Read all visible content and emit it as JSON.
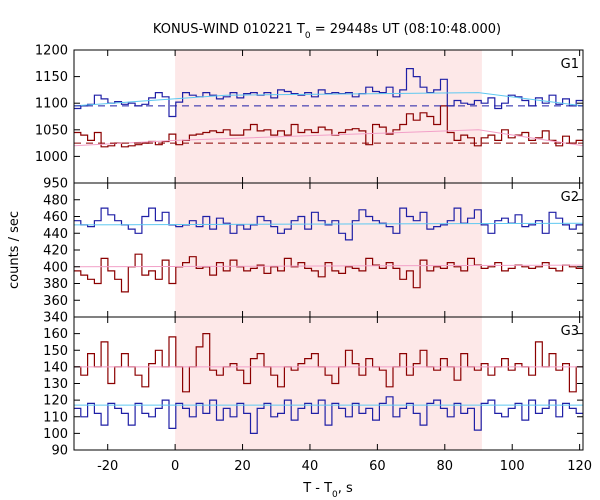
{
  "chart_data": {
    "type": "line",
    "title": {
      "pre": "KONUS-WIND 010221 T",
      "sub": "0",
      "post": " = 29448s UT (08:10:48.000)"
    },
    "xlabel": {
      "pre": "T - T",
      "sub": "0",
      "post": ", s"
    },
    "ylabel": "counts / sec",
    "xlim": [
      -30,
      121
    ],
    "xticks": [
      -20,
      0,
      20,
      40,
      60,
      80,
      100,
      120
    ],
    "shaded_interval": [
      0,
      91
    ],
    "colors": {
      "blue": "#1f1fa6",
      "red": "#8b0000",
      "cyan": "#5ec8f0",
      "pink": "#f2a0c8",
      "shade": "#fde8e8"
    },
    "panels": [
      {
        "name": "G1",
        "ylim": [
          950,
          1200
        ],
        "yticks": [
          950,
          1000,
          1050,
          1100,
          1150,
          1200
        ],
        "series": [
          {
            "color": "blue",
            "values": [
              1090,
              1095,
              1098,
              1115,
              1108,
              1100,
              1103,
              1098,
              1100,
              1095,
              1098,
              1110,
              1120,
              1112,
              1075,
              1102,
              1120,
              1115,
              1112,
              1120,
              1115,
              1108,
              1112,
              1120,
              1110,
              1118,
              1120,
              1115,
              1120,
              1110,
              1125,
              1122,
              1118,
              1115,
              1120,
              1112,
              1125,
              1118,
              1120,
              1118,
              1120,
              1112,
              1118,
              1130,
              1122,
              1120,
              1130,
              1112,
              1125,
              1165,
              1150,
              1130,
              1120,
              1125,
              1145,
              1095,
              1105,
              1100,
              1098,
              1105,
              1100,
              1110,
              1090,
              1100,
              1115,
              1112,
              1105,
              1095,
              1110,
              1100,
              1115,
              1098,
              1108,
              1095,
              1105
            ]
          },
          {
            "color": "red",
            "values": [
              1045,
              1040,
              1030,
              1045,
              1018,
              1020,
              1025,
              1018,
              1020,
              1022,
              1025,
              1028,
              1022,
              1028,
              1042,
              1022,
              1030,
              1040,
              1042,
              1045,
              1048,
              1045,
              1050,
              1040,
              1040,
              1050,
              1060,
              1048,
              1050,
              1040,
              1048,
              1040,
              1060,
              1045,
              1050,
              1045,
              1055,
              1050,
              1040,
              1045,
              1050,
              1052,
              1048,
              1022,
              1060,
              1055,
              1042,
              1050,
              1060,
              1080,
              1068,
              1082,
              1075,
              1060,
              1095,
              1045,
              1030,
              1040,
              1035,
              1020,
              1035,
              1040,
              1030,
              1050,
              1035,
              1040,
              1045,
              1030,
              1035,
              1048,
              1030,
              1020,
              1038,
              1025,
              1030
            ]
          },
          {
            "color": "cyan",
            "segments": [
              [
                -30,
                1095
              ],
              [
                15,
                1115
              ],
              [
                90,
                1120
              ],
              [
                121,
                1095
              ]
            ]
          },
          {
            "color": "pink",
            "segments": [
              [
                -30,
                1020
              ],
              [
                0,
                1030
              ],
              [
                90,
                1050
              ],
              [
                121,
                1020
              ]
            ]
          },
          {
            "color": "blue",
            "dashed": true,
            "segments": [
              [
                -30,
                1095
              ],
              [
                121,
                1095
              ]
            ]
          },
          {
            "color": "red",
            "dashed": true,
            "segments": [
              [
                -30,
                1025
              ],
              [
                121,
                1025
              ]
            ]
          }
        ]
      },
      {
        "name": "G2",
        "ylim": [
          340,
          500
        ],
        "yticks": [
          340,
          360,
          380,
          400,
          420,
          440,
          460,
          480
        ],
        "series": [
          {
            "color": "blue",
            "values": [
              455,
              450,
              448,
              455,
              470,
              462,
              455,
              450,
              445,
              440,
              460,
              470,
              455,
              465,
              450,
              448,
              450,
              455,
              448,
              460,
              445,
              458,
              452,
              440,
              450,
              445,
              450,
              460,
              455,
              448,
              440,
              445,
              455,
              460,
              445,
              465,
              455,
              450,
              455,
              440,
              432,
              455,
              468,
              460,
              455,
              452,
              448,
              440,
              470,
              460,
              455,
              465,
              445,
              448,
              450,
              455,
              470,
              452,
              458,
              468,
              450,
              440,
              455,
              458,
              452,
              462,
              448,
              450,
              455,
              440,
              465,
              458,
              450,
              445,
              450
            ]
          },
          {
            "color": "red",
            "values": [
              395,
              390,
              385,
              380,
              410,
              395,
              385,
              370,
              400,
              415,
              390,
              395,
              385,
              408,
              380,
              400,
              405,
              412,
              398,
              400,
              390,
              405,
              395,
              408,
              400,
              395,
              398,
              402,
              392,
              400,
              395,
              410,
              400,
              405,
              398,
              395,
              388,
              405,
              395,
              392,
              400,
              398,
              395,
              410,
              402,
              398,
              405,
              398,
              385,
              395,
              375,
              408,
              395,
              400,
              398,
              405,
              400,
              395,
              410,
              402,
              398,
              400,
              405,
              395,
              398,
              402,
              400,
              398,
              400,
              405,
              398,
              395,
              402,
              400,
              398
            ]
          },
          {
            "color": "cyan",
            "segments": [
              [
                -30,
                450
              ],
              [
                121,
                452
              ]
            ]
          },
          {
            "color": "pink",
            "segments": [
              [
                -30,
                400
              ],
              [
                121,
                402
              ]
            ]
          }
        ]
      },
      {
        "name": "G3",
        "ylim": [
          90,
          170
        ],
        "yticks": [
          90,
          100,
          110,
          120,
          130,
          140,
          150,
          160
        ],
        "series": [
          {
            "color": "blue",
            "values": [
              115,
              110,
              118,
              112,
              105,
              118,
              115,
              112,
              105,
              118,
              112,
              110,
              115,
              120,
              103,
              118,
              115,
              110,
              118,
              112,
              120,
              108,
              115,
              110,
              118,
              112,
              100,
              115,
              118,
              110,
              112,
              120,
              108,
              115,
              118,
              112,
              120,
              105,
              118,
              115,
              110,
              118,
              112,
              115,
              108,
              118,
              122,
              110,
              115,
              118,
              112,
              105,
              118,
              120,
              115,
              110,
              118,
              112,
              115,
              102,
              118,
              120,
              112,
              110,
              115,
              118,
              108,
              120,
              112,
              115,
              120,
              110,
              118,
              115,
              112
            ]
          },
          {
            "color": "red",
            "values": [
              140,
              135,
              148,
              140,
              155,
              130,
              140,
              148,
              140,
              135,
              128,
              142,
              150,
              140,
              158,
              140,
              125,
              140,
              152,
              160,
              138,
              135,
              140,
              142,
              138,
              130,
              145,
              148,
              140,
              135,
              128,
              140,
              138,
              142,
              145,
              148,
              140,
              135,
              130,
              140,
              150,
              142,
              135,
              145,
              140,
              138,
              128,
              140,
              148,
              135,
              142,
              150,
              140,
              138,
              145,
              140,
              132,
              148,
              140,
              138,
              142,
              135,
              140,
              145,
              138,
              142,
              140,
              135,
              155,
              140,
              148,
              138,
              142,
              125,
              140
            ]
          },
          {
            "color": "cyan",
            "segments": [
              [
                -30,
                117
              ],
              [
                121,
                117
              ]
            ]
          },
          {
            "color": "pink",
            "segments": [
              [
                -30,
                140
              ],
              [
                121,
                140
              ]
            ]
          }
        ]
      }
    ]
  }
}
